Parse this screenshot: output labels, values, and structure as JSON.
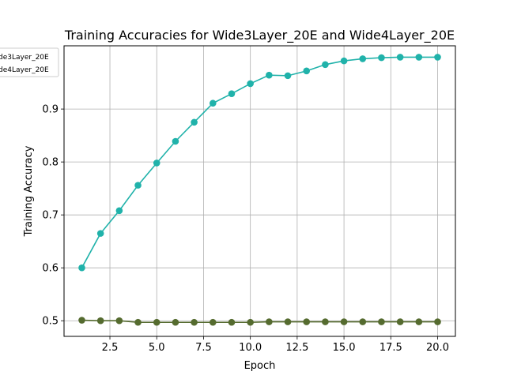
{
  "chart_data": {
    "type": "line",
    "title": "Training Accuracies for Wide3Layer_20E and Wide4Layer_20E",
    "xlabel": "Epoch",
    "ylabel": "Training Accuracy",
    "xlim": [
      0.05,
      20.95
    ],
    "ylim": [
      0.4705,
      1.0195
    ],
    "grid": true,
    "legend_position": "top-left (partially clipped)",
    "x_ticks": [
      2.5,
      5.0,
      7.5,
      10.0,
      12.5,
      15.0,
      17.5,
      20.0
    ],
    "x_tick_labels": [
      "2.5",
      "5.0",
      "7.5",
      "10.0",
      "12.5",
      "15.0",
      "17.5",
      "20.0"
    ],
    "y_ticks": [
      0.5,
      0.6,
      0.7,
      0.8,
      0.9
    ],
    "y_tick_labels": [
      "0.5",
      "0.6",
      "0.7",
      "0.8",
      "0.9"
    ],
    "x": [
      1,
      2,
      3,
      4,
      5,
      6,
      7,
      8,
      9,
      10,
      11,
      12,
      13,
      14,
      15,
      16,
      17,
      18,
      19,
      20
    ],
    "series": [
      {
        "name": "Wide3Layer_20E",
        "legend_label_visible": "de3Layer_20E",
        "color": "#20b2aa",
        "values": [
          0.6,
          0.665,
          0.708,
          0.756,
          0.798,
          0.839,
          0.875,
          0.911,
          0.929,
          0.948,
          0.964,
          0.963,
          0.972,
          0.984,
          0.991,
          0.995,
          0.997,
          0.998,
          0.998,
          0.998
        ]
      },
      {
        "name": "Wide4Layer_20E",
        "legend_label_visible": "de4Layer_20E",
        "color": "#556b2f",
        "values": [
          0.501,
          0.5,
          0.5,
          0.497,
          0.497,
          0.497,
          0.497,
          0.497,
          0.497,
          0.497,
          0.498,
          0.498,
          0.498,
          0.498,
          0.498,
          0.498,
          0.498,
          0.498,
          0.498,
          0.498
        ]
      }
    ]
  }
}
